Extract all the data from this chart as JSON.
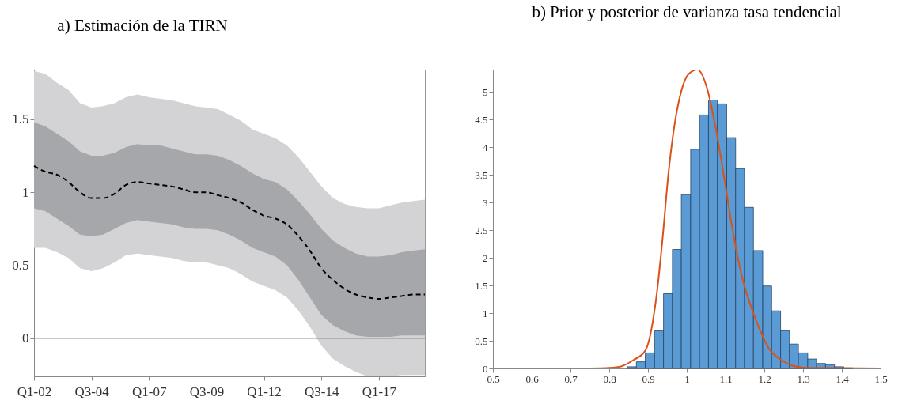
{
  "chart_data": [
    {
      "type": "line",
      "title": "a) Estimación de la TIRN",
      "line_style": "dashed",
      "categories": [
        "Q1-02",
        null,
        null,
        null,
        null,
        "Q3-04",
        null,
        null,
        null,
        null,
        "Q1-07",
        null,
        null,
        null,
        null,
        "Q3-09",
        null,
        null,
        null,
        null,
        "Q1-12",
        null,
        null,
        null,
        null,
        "Q3-14",
        null,
        null,
        null,
        null,
        "Q1-17",
        null,
        null,
        null,
        null
      ],
      "ylim": [
        -0.26,
        1.84
      ],
      "yticks": [
        0,
        0.5,
        1,
        1.5
      ],
      "series": [
        {
          "color": "#d3d3d6",
          "values": [
            null,
            null,
            null,
            null,
            null,
            null,
            null,
            null,
            null,
            null,
            null,
            null,
            null,
            null,
            null,
            null,
            null,
            null,
            null,
            null,
            null,
            null,
            null,
            null,
            null,
            null,
            null,
            null,
            null,
            null,
            null,
            null,
            null,
            null,
            null
          ],
          "lower": [
            0.62,
            0.62,
            0.59,
            0.55,
            0.48,
            0.46,
            0.48,
            0.52,
            0.57,
            0.58,
            0.57,
            0.56,
            0.55,
            0.53,
            0.52,
            0.52,
            0.5,
            0.48,
            0.44,
            0.39,
            0.36,
            0.33,
            0.28,
            0.19,
            0.08,
            -0.05,
            -0.14,
            -0.19,
            -0.23,
            -0.26,
            -0.26,
            -0.26,
            -0.25,
            -0.25,
            -0.25
          ],
          "upper": [
            1.83,
            1.81,
            1.75,
            1.7,
            1.61,
            1.58,
            1.59,
            1.61,
            1.65,
            1.67,
            1.65,
            1.64,
            1.63,
            1.61,
            1.59,
            1.58,
            1.57,
            1.53,
            1.49,
            1.43,
            1.4,
            1.37,
            1.32,
            1.24,
            1.14,
            1.04,
            0.96,
            0.92,
            0.9,
            0.89,
            0.89,
            0.91,
            0.93,
            0.94,
            0.95
          ]
        },
        {
          "color": "#a6a7aa",
          "values": [
            null,
            null,
            null,
            null,
            null,
            null,
            null,
            null,
            null,
            null,
            null,
            null,
            null,
            null,
            null,
            null,
            null,
            null,
            null,
            null,
            null,
            null,
            null,
            null,
            null,
            null,
            null,
            null,
            null,
            null,
            null,
            null,
            null,
            null,
            null
          ],
          "lower": [
            0.89,
            0.87,
            0.82,
            0.77,
            0.71,
            0.7,
            0.71,
            0.75,
            0.79,
            0.81,
            0.8,
            0.79,
            0.78,
            0.76,
            0.75,
            0.75,
            0.74,
            0.71,
            0.67,
            0.62,
            0.59,
            0.56,
            0.5,
            0.4,
            0.28,
            0.16,
            0.09,
            0.05,
            0.02,
            0.01,
            0.01,
            0.01,
            0.02,
            0.02,
            0.02
          ],
          "upper": [
            1.48,
            1.45,
            1.4,
            1.35,
            1.28,
            1.25,
            1.25,
            1.27,
            1.31,
            1.33,
            1.32,
            1.32,
            1.3,
            1.28,
            1.26,
            1.26,
            1.25,
            1.22,
            1.18,
            1.13,
            1.09,
            1.07,
            1.02,
            0.94,
            0.85,
            0.75,
            0.67,
            0.62,
            0.58,
            0.56,
            0.56,
            0.57,
            0.59,
            0.6,
            0.61
          ]
        },
        {
          "color": "#000000",
          "values": [
            1.18,
            1.14,
            1.12,
            1.07,
            1.0,
            0.96,
            0.96,
            0.99,
            1.05,
            1.07,
            1.06,
            1.05,
            1.04,
            1.02,
            1.0,
            1.0,
            0.98,
            0.96,
            0.93,
            0.88,
            0.84,
            0.82,
            0.78,
            0.7,
            0.6,
            0.48,
            0.4,
            0.34,
            0.3,
            0.28,
            0.27,
            0.28,
            0.29,
            0.3,
            0.3
          ]
        }
      ],
      "ref_lines": [
        {
          "axis": "y",
          "value": 0,
          "color": "#888888"
        }
      ]
    },
    {
      "type": "histogram",
      "title": "b) Prior y posterior de varianza tasa tendencial",
      "xlim": [
        0.5,
        1.5
      ],
      "xticks": [
        0.5,
        0.6,
        0.7,
        0.8,
        0.9,
        1,
        1.1,
        1.2,
        1.3,
        1.4,
        1.5
      ],
      "ylim": [
        0,
        5.4
      ],
      "yticks": [
        0,
        0.5,
        1,
        1.5,
        2,
        2.5,
        3,
        3.5,
        4,
        4.5,
        5
      ],
      "series": [
        {
          "type": "histogram",
          "color": "#5b9bd5",
          "bins": [
            0.847,
            0.87,
            0.893,
            0.917,
            0.94,
            0.963,
            0.986,
            1.01,
            1.033,
            1.056,
            1.079,
            1.103,
            1.126,
            1.149,
            1.172,
            1.196,
            1.219,
            1.242,
            1.265,
            1.288,
            1.312,
            1.335,
            1.358,
            1.381,
            1.405,
            1.428
          ],
          "values": [
            0.03,
            0.12,
            0.28,
            0.68,
            1.35,
            2.15,
            3.14,
            3.96,
            4.58,
            4.85,
            4.78,
            4.17,
            3.61,
            2.91,
            2.13,
            1.49,
            1.04,
            0.68,
            0.44,
            0.28,
            0.17,
            0.09,
            0.07,
            0.03,
            0.01
          ]
        },
        {
          "type": "line",
          "color": "#d95319",
          "x": [
            0.75,
            0.8,
            0.832,
            0.862,
            0.893,
            0.923,
            0.938,
            0.953,
            0.968,
            0.984,
            1.006,
            1.028,
            1.052,
            1.075,
            1.098,
            1.12,
            1.143,
            1.166,
            1.189,
            1.211,
            1.242,
            1.272,
            1.31,
            1.5
          ],
          "values": [
            0,
            0.01,
            0.04,
            0.15,
            0.32,
            1.37,
            2.38,
            3.54,
            4.38,
            4.96,
            5.33,
            5.4,
            5.07,
            4.33,
            3.38,
            2.43,
            1.64,
            1.11,
            0.69,
            0.37,
            0.16,
            0.05,
            0.01,
            0
          ]
        }
      ]
    }
  ]
}
